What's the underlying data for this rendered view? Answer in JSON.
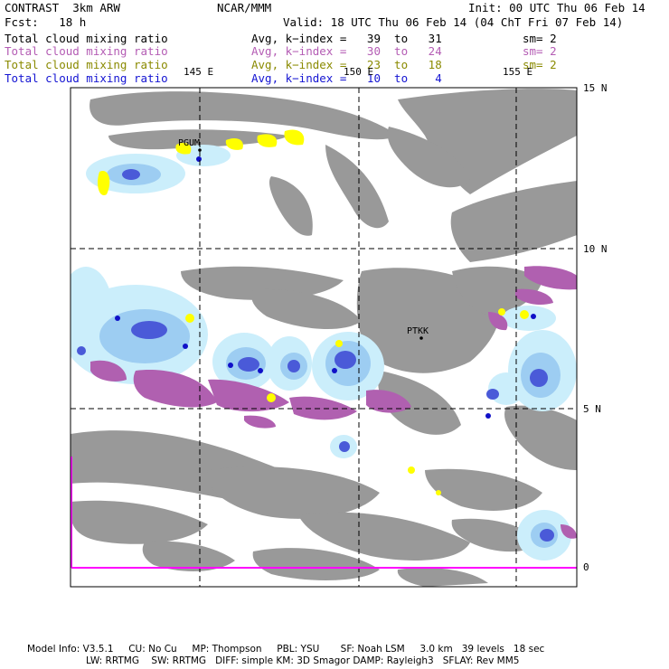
{
  "header": {
    "left_line1": "CONTRAST  3km ARW",
    "center_line1": "NCAR/MMM",
    "right_line1": "Init: 00 UTC Thu 06 Feb 14",
    "left_line2": "Fcst:   18 h",
    "right_line2": "Valid: 18 UTC Thu 06 Feb 14 (04 ChT Fri 07 Feb 14)"
  },
  "fields": [
    {
      "name": "Total cloud mixing ratio",
      "range": "Avg, k−index =   39  to   31",
      "sm": "sm= 2",
      "color": "#000000"
    },
    {
      "name": "Total cloud mixing ratio",
      "range": "Avg, k−index =   30  to   24",
      "sm": "sm= 2",
      "color": "#b45cb4"
    },
    {
      "name": "Total cloud mixing ratio",
      "range": "Avg, k−index =   23  to   18",
      "sm": "sm= 2",
      "color": "#8a8a00"
    },
    {
      "name": "Total cloud mixing ratio",
      "range": "Avg, k−index =   10  to    4",
      "sm": "",
      "color": "#1414d2"
    }
  ],
  "map": {
    "lon_labels": [
      "145 E",
      "150 E",
      "155 E"
    ],
    "lat_labels": [
      "15 N",
      "10 N",
      "5 N",
      "0"
    ],
    "stations": [
      "PGUM",
      "PTKK"
    ],
    "colors": {
      "frame": "#000000",
      "grid": "#000000",
      "high_cloud": "#999999",
      "mid_cloud": "#b060b0",
      "low_cloud": "#ffff00",
      "shallow_light": "#cbeefb",
      "shallow_mid": "#9dcdf2",
      "shallow_dark": "#4a5ad8",
      "shallow_core": "#1010c8",
      "equator": "#ff00ff"
    }
  },
  "footer": {
    "line1": "Model Info: V3.5.1     CU: No Cu     MP: Thompson     PBL: YSU       SF: Noah LSM     3.0 km   39 levels   18 sec",
    "line2": "LW: RRTMG    SW: RRTMG   DIFF: simple KM: 3D Smagor DAMP: Rayleigh3   SFLAY: Rev MM5"
  }
}
